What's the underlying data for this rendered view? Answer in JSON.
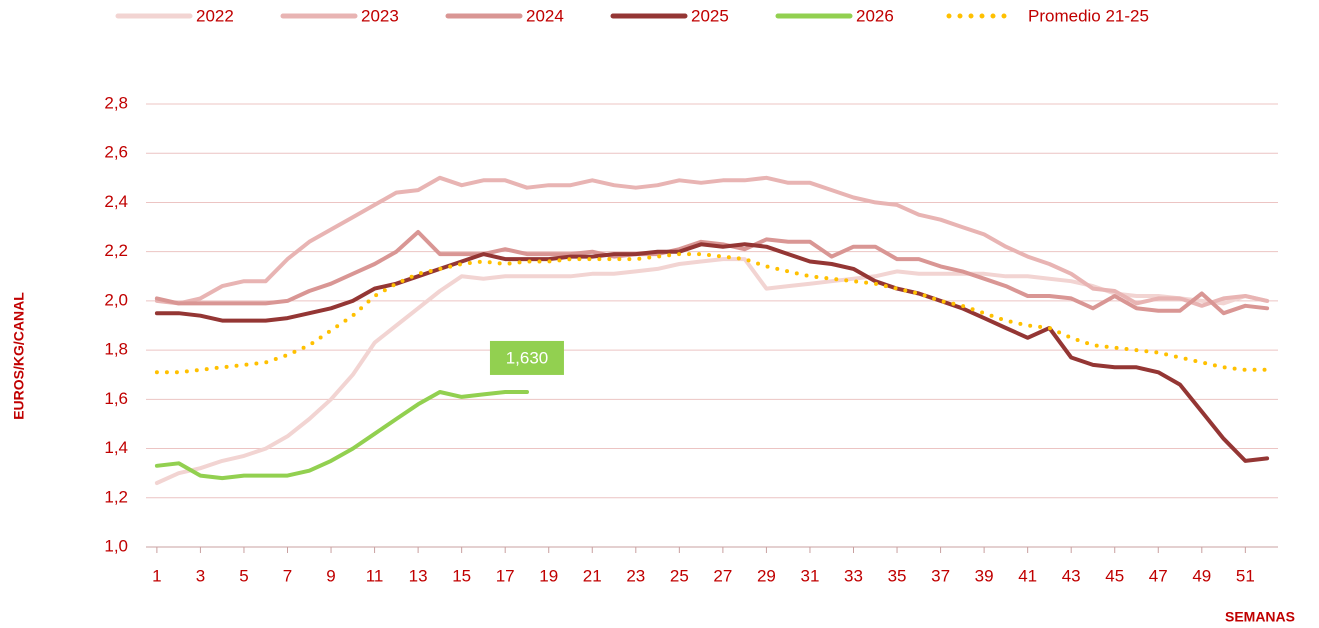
{
  "chart_data": {
    "type": "line",
    "x_label": "SEMANAS",
    "y_label": "EUROS/KG/CANAL",
    "x": [
      1,
      2,
      3,
      4,
      5,
      6,
      7,
      8,
      9,
      10,
      11,
      12,
      13,
      14,
      15,
      16,
      17,
      18,
      19,
      20,
      21,
      22,
      23,
      24,
      25,
      26,
      27,
      28,
      29,
      30,
      31,
      32,
      33,
      34,
      35,
      36,
      37,
      38,
      39,
      40,
      41,
      42,
      43,
      44,
      45,
      46,
      47,
      48,
      49,
      50,
      51,
      52
    ],
    "xlim": [
      0.5,
      52.5
    ],
    "xticks": [
      1,
      3,
      5,
      7,
      9,
      11,
      13,
      15,
      17,
      19,
      21,
      23,
      25,
      27,
      29,
      31,
      33,
      35,
      37,
      39,
      41,
      43,
      45,
      47,
      49,
      51
    ],
    "ylim": [
      1.0,
      2.8
    ],
    "yticks": [
      {
        "value": 1.0,
        "label": "1,0"
      },
      {
        "value": 1.2,
        "label": "1,2"
      },
      {
        "value": 1.4,
        "label": "1,4"
      },
      {
        "value": 1.6,
        "label": "1,6"
      },
      {
        "value": 1.8,
        "label": "1,8"
      },
      {
        "value": 2.0,
        "label": "2,0"
      },
      {
        "value": 2.2,
        "label": "2,2"
      },
      {
        "value": 2.4,
        "label": "2,4"
      },
      {
        "value": 2.6,
        "label": "2,6"
      },
      {
        "value": 2.8,
        "label": "2,8"
      }
    ],
    "grid": true,
    "legend": "top",
    "series": [
      {
        "name": "2022",
        "color": "#f2d4d2",
        "values": [
          1.26,
          1.3,
          1.32,
          1.35,
          1.37,
          1.4,
          1.45,
          1.52,
          1.6,
          1.7,
          1.83,
          1.9,
          1.97,
          2.04,
          2.1,
          2.09,
          2.1,
          2.1,
          2.1,
          2.1,
          2.11,
          2.11,
          2.12,
          2.13,
          2.15,
          2.16,
          2.17,
          2.17,
          2.05,
          2.06,
          2.07,
          2.08,
          2.09,
          2.1,
          2.12,
          2.11,
          2.11,
          2.11,
          2.11,
          2.1,
          2.1,
          2.09,
          2.08,
          2.06,
          2.03,
          2.02,
          2.02,
          2.01,
          2.0,
          1.99,
          2.02,
          2.0
        ]
      },
      {
        "name": "2023",
        "color": "#e8b4b3",
        "values": [
          2.0,
          1.99,
          2.01,
          2.06,
          2.08,
          2.08,
          2.17,
          2.24,
          2.29,
          2.34,
          2.39,
          2.44,
          2.45,
          2.5,
          2.47,
          2.49,
          2.49,
          2.46,
          2.47,
          2.47,
          2.49,
          2.47,
          2.46,
          2.47,
          2.49,
          2.48,
          2.49,
          2.49,
          2.5,
          2.48,
          2.48,
          2.45,
          2.42,
          2.4,
          2.39,
          2.35,
          2.33,
          2.3,
          2.27,
          2.22,
          2.18,
          2.15,
          2.11,
          2.05,
          2.04,
          1.99,
          2.01,
          2.01,
          1.98,
          2.01,
          2.02,
          2.0
        ]
      },
      {
        "name": "2024",
        "color": "#d99694",
        "values": [
          2.01,
          1.99,
          1.99,
          1.99,
          1.99,
          1.99,
          2.0,
          2.04,
          2.07,
          2.11,
          2.15,
          2.2,
          2.28,
          2.19,
          2.19,
          2.19,
          2.21,
          2.19,
          2.19,
          2.19,
          2.2,
          2.18,
          2.19,
          2.19,
          2.21,
          2.24,
          2.23,
          2.21,
          2.25,
          2.24,
          2.24,
          2.18,
          2.22,
          2.22,
          2.17,
          2.17,
          2.14,
          2.12,
          2.09,
          2.06,
          2.02,
          2.02,
          2.01,
          1.97,
          2.02,
          1.97,
          1.96,
          1.96,
          2.03,
          1.95,
          1.98,
          1.97
        ]
      },
      {
        "name": "2025",
        "color": "#943634",
        "values": [
          1.95,
          1.95,
          1.94,
          1.92,
          1.92,
          1.92,
          1.93,
          1.95,
          1.97,
          2.0,
          2.05,
          2.07,
          2.1,
          2.13,
          2.16,
          2.19,
          2.17,
          2.17,
          2.17,
          2.18,
          2.18,
          2.19,
          2.19,
          2.2,
          2.2,
          2.23,
          2.22,
          2.23,
          2.22,
          2.19,
          2.16,
          2.15,
          2.13,
          2.08,
          2.05,
          2.03,
          2.0,
          1.97,
          1.93,
          1.89,
          1.85,
          1.89,
          1.77,
          1.74,
          1.73,
          1.73,
          1.71,
          1.66,
          1.55,
          1.44,
          1.35,
          1.36
        ]
      },
      {
        "name": "2026",
        "color": "#92d050",
        "values": [
          1.33,
          1.34,
          1.29,
          1.28,
          1.29,
          1.29,
          1.29,
          1.31,
          1.35,
          1.4,
          1.46,
          1.52,
          1.58,
          1.63,
          1.61,
          1.62,
          1.63,
          1.63,
          null,
          null,
          null,
          null,
          null,
          null,
          null,
          null,
          null,
          null,
          null,
          null,
          null,
          null,
          null,
          null,
          null,
          null,
          null,
          null,
          null,
          null,
          null,
          null,
          null,
          null,
          null,
          null,
          null,
          null,
          null,
          null,
          null,
          null
        ],
        "value_labels": [
          null,
          null,
          null,
          null,
          null,
          null,
          null,
          null,
          null,
          null,
          null,
          null,
          null,
          null,
          null,
          null,
          null,
          "1,630",
          null,
          null,
          null,
          null,
          null,
          null,
          null,
          null,
          null,
          null,
          null,
          null,
          null,
          null,
          null,
          null,
          null,
          null,
          null,
          null,
          null,
          null,
          null,
          null,
          null,
          null,
          null,
          null,
          null,
          null,
          null,
          null,
          null,
          null
        ]
      },
      {
        "name": "Promedio 21-25",
        "color": "#ffc000",
        "dotted": true,
        "values": [
          1.71,
          1.71,
          1.72,
          1.73,
          1.74,
          1.75,
          1.78,
          1.82,
          1.88,
          1.94,
          2.02,
          2.07,
          2.11,
          2.13,
          2.15,
          2.16,
          2.15,
          2.16,
          2.16,
          2.17,
          2.17,
          2.17,
          2.17,
          2.18,
          2.19,
          2.19,
          2.18,
          2.17,
          2.14,
          2.12,
          2.1,
          2.09,
          2.08,
          2.07,
          2.05,
          2.03,
          2.0,
          1.98,
          1.95,
          1.92,
          1.9,
          1.89,
          1.85,
          1.82,
          1.81,
          1.8,
          1.79,
          1.77,
          1.75,
          1.73,
          1.72,
          1.72
        ]
      }
    ]
  }
}
